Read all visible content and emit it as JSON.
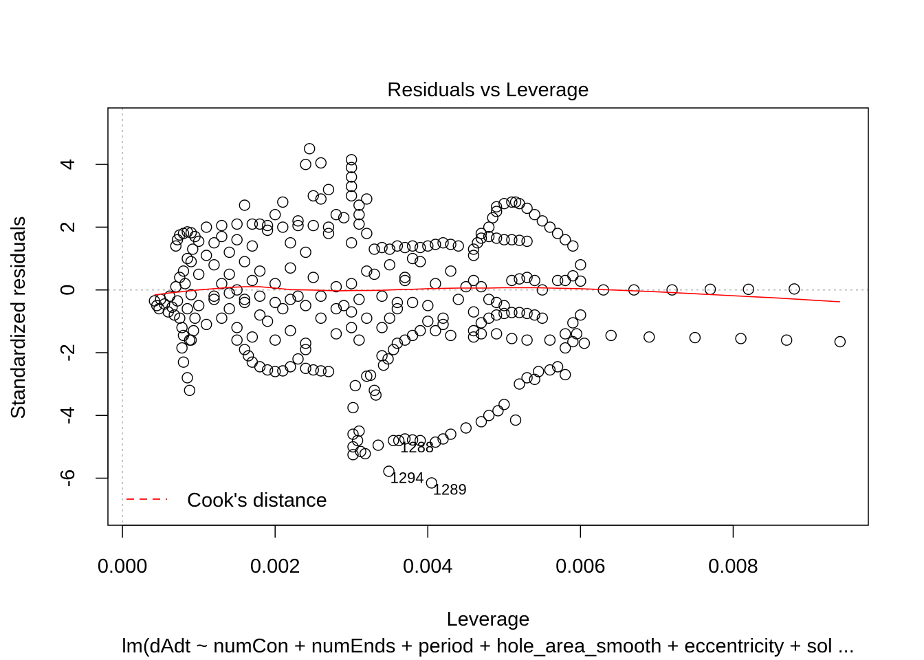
{
  "chart_data": {
    "type": "scatter",
    "title": "Residuals vs Leverage",
    "xlabel": "Leverage",
    "ylabel": "Standardized residuals",
    "subtitle": "lm(dAdt ~ numCon + numEnds + period + hole_area_smooth + eccentricity + sol ...",
    "xlim": [
      -0.00019,
      0.00977
    ],
    "ylim": [
      -7.5,
      5.8
    ],
    "x_ticks": [
      0.0,
      0.002,
      0.004,
      0.006,
      0.008
    ],
    "x_tick_labels": [
      "0.000",
      "0.002",
      "0.004",
      "0.006",
      "0.008"
    ],
    "y_ticks": [
      -6,
      -4,
      -2,
      0,
      2,
      4
    ],
    "y_tick_labels": [
      "-6",
      "-4",
      "-2",
      "0",
      "2",
      "4"
    ],
    "reference_lines": {
      "h": 0,
      "v": 0,
      "style": "dotted",
      "color": "#b3b3b3"
    },
    "legend": {
      "label": "Cook's distance",
      "position": "bottom-left",
      "line_style": "dashed",
      "color": "#ff0000"
    },
    "labeled_points": [
      {
        "label": "1288",
        "x": 0.00362,
        "y": -4.8
      },
      {
        "label": "1294",
        "x": 0.00349,
        "y": -5.78
      },
      {
        "label": "1289",
        "x": 0.00405,
        "y": -6.15
      }
    ],
    "smooth_line": {
      "color": "#ff0000",
      "x": [
        0.00042,
        0.0006,
        0.0008,
        0.001,
        0.0012,
        0.0014,
        0.0016,
        0.0018,
        0.002,
        0.0022,
        0.0024,
        0.0026,
        0.0028,
        0.003,
        0.0032,
        0.0034,
        0.0036,
        0.0038,
        0.004,
        0.0042,
        0.0044,
        0.0046,
        0.0048,
        0.005,
        0.0052,
        0.0054,
        0.0056,
        0.0058,
        0.006,
        0.0062,
        0.0066,
        0.007,
        0.0074,
        0.0078,
        0.0082,
        0.0086,
        0.009,
        0.0094
      ],
      "y": [
        -0.16,
        -0.1,
        -0.05,
        0.0,
        0.04,
        0.08,
        0.1,
        0.1,
        0.06,
        0.01,
        0.0,
        -0.01,
        -0.03,
        -0.02,
        -0.02,
        -0.01,
        0.01,
        0.02,
        0.04,
        0.05,
        0.06,
        0.06,
        0.06,
        0.07,
        0.07,
        0.07,
        0.06,
        0.05,
        0.04,
        0.02,
        -0.02,
        -0.06,
        -0.11,
        -0.16,
        -0.21,
        -0.26,
        -0.32,
        -0.38
      ]
    },
    "points": [
      [
        0.00042,
        -0.35
      ],
      [
        0.00045,
        -0.5
      ],
      [
        0.00048,
        -0.6
      ],
      [
        0.0005,
        -0.3
      ],
      [
        0.00055,
        -0.45
      ],
      [
        0.0006,
        -0.7
      ],
      [
        0.00062,
        -0.2
      ],
      [
        0.00065,
        -0.55
      ],
      [
        0.00068,
        -0.8
      ],
      [
        0.0007,
        0.1
      ],
      [
        0.00072,
        -0.35
      ],
      [
        0.00075,
        0.4
      ],
      [
        0.00075,
        -0.9
      ],
      [
        0.00078,
        -1.2
      ],
      [
        0.0008,
        0.6
      ],
      [
        0.0008,
        -1.45
      ],
      [
        0.00082,
        0.2
      ],
      [
        0.00085,
        1.0
      ],
      [
        0.00085,
        -0.6
      ],
      [
        0.00088,
        -1.6
      ],
      [
        0.0009,
        0.9
      ],
      [
        0.0009,
        -0.15
      ],
      [
        0.00092,
        1.3
      ],
      [
        0.00095,
        -0.9
      ],
      [
        0.0007,
        1.4
      ],
      [
        0.00072,
        1.6
      ],
      [
        0.00075,
        1.75
      ],
      [
        0.0008,
        1.8
      ],
      [
        0.00085,
        1.85
      ],
      [
        0.0009,
        1.82
      ],
      [
        0.00095,
        1.7
      ],
      [
        0.001,
        1.55
      ],
      [
        0.00078,
        -1.85
      ],
      [
        0.0008,
        -2.3
      ],
      [
        0.00085,
        -2.8
      ],
      [
        0.00088,
        -3.2
      ],
      [
        0.0009,
        -1.6
      ],
      [
        0.00093,
        -1.3
      ],
      [
        0.001,
        0.5
      ],
      [
        0.001,
        -0.5
      ],
      [
        0.0011,
        1.1
      ],
      [
        0.0011,
        -1.1
      ],
      [
        0.0012,
        0.8
      ],
      [
        0.0012,
        -0.3
      ],
      [
        0.0012,
        1.5
      ],
      [
        0.0013,
        0.2
      ],
      [
        0.0013,
        -0.9
      ],
      [
        0.0013,
        1.7
      ],
      [
        0.0014,
        1.2
      ],
      [
        0.0014,
        -0.6
      ],
      [
        0.0014,
        0.5
      ],
      [
        0.0015,
        1.6
      ],
      [
        0.0015,
        -1.2
      ],
      [
        0.0015,
        0.0
      ],
      [
        0.0016,
        2.7
      ],
      [
        0.0016,
        0.9
      ],
      [
        0.0016,
        -0.4
      ],
      [
        0.0017,
        1.4
      ],
      [
        0.0017,
        -1.5
      ],
      [
        0.0017,
        0.3
      ],
      [
        0.0018,
        2.1
      ],
      [
        0.0018,
        -0.8
      ],
      [
        0.0018,
        0.6
      ],
      [
        0.0019,
        1.9
      ],
      [
        0.0019,
        -1.0
      ],
      [
        0.002,
        2.4
      ],
      [
        0.002,
        0.2
      ],
      [
        0.002,
        -1.6
      ],
      [
        0.0021,
        2.8
      ],
      [
        0.0021,
        -0.6
      ],
      [
        0.0022,
        1.5
      ],
      [
        0.0022,
        -1.3
      ],
      [
        0.0022,
        0.7
      ],
      [
        0.0023,
        2.2
      ],
      [
        0.0023,
        -0.2
      ],
      [
        0.0024,
        4.0
      ],
      [
        0.0024,
        1.2
      ],
      [
        0.0024,
        -1.7
      ],
      [
        0.00245,
        4.5
      ],
      [
        0.0025,
        3.0
      ],
      [
        0.0025,
        0.4
      ],
      [
        0.0026,
        4.05
      ],
      [
        0.0026,
        2.9
      ],
      [
        0.0026,
        -0.9
      ],
      [
        0.0027,
        3.2
      ],
      [
        0.0027,
        1.8
      ],
      [
        0.0028,
        2.4
      ],
      [
        0.0028,
        0.1
      ],
      [
        0.0028,
        -1.4
      ],
      [
        0.0029,
        2.3
      ],
      [
        0.0029,
        -0.5
      ],
      [
        0.0015,
        -1.6
      ],
      [
        0.0016,
        -1.9
      ],
      [
        0.00165,
        -2.1
      ],
      [
        0.0017,
        -2.3
      ],
      [
        0.0018,
        -2.45
      ],
      [
        0.0019,
        -2.55
      ],
      [
        0.002,
        -2.6
      ],
      [
        0.0021,
        -2.58
      ],
      [
        0.0022,
        -2.45
      ],
      [
        0.0023,
        -2.2
      ],
      [
        0.0024,
        -1.9
      ],
      [
        0.0024,
        -2.5
      ],
      [
        0.0025,
        -2.55
      ],
      [
        0.0026,
        -2.58
      ],
      [
        0.0027,
        -2.6
      ],
      [
        0.0011,
        2.0
      ],
      [
        0.0013,
        2.05
      ],
      [
        0.0015,
        2.1
      ],
      [
        0.0017,
        2.1
      ],
      [
        0.0019,
        2.05
      ],
      [
        0.0021,
        2.0
      ],
      [
        0.0023,
        2.05
      ],
      [
        0.0025,
        2.05
      ],
      [
        0.0027,
        2.0
      ],
      [
        0.0012,
        -0.2
      ],
      [
        0.0014,
        -0.1
      ],
      [
        0.0016,
        -0.3
      ],
      [
        0.0018,
        -0.2
      ],
      [
        0.002,
        -0.4
      ],
      [
        0.0022,
        -0.3
      ],
      [
        0.0024,
        -0.5
      ],
      [
        0.0026,
        -0.2
      ],
      [
        0.0028,
        -0.6
      ],
      [
        0.003,
        4.15
      ],
      [
        0.003,
        3.9
      ],
      [
        0.003,
        3.6
      ],
      [
        0.003,
        3.3
      ],
      [
        0.003,
        3.0
      ],
      [
        0.0031,
        2.7
      ],
      [
        0.0031,
        2.4
      ],
      [
        0.0031,
        2.1
      ],
      [
        0.0032,
        1.8
      ],
      [
        0.003,
        1.5
      ],
      [
        0.003,
        0.2
      ],
      [
        0.003,
        -0.7
      ],
      [
        0.003,
        -1.2
      ],
      [
        0.0031,
        -1.6
      ],
      [
        0.0031,
        -0.3
      ],
      [
        0.0032,
        2.9
      ],
      [
        0.0032,
        0.6
      ],
      [
        0.0032,
        -0.9
      ],
      [
        0.00302,
        -3.75
      ],
      [
        0.00305,
        -3.05
      ],
      [
        0.00302,
        -4.6
      ],
      [
        0.00302,
        -5.0
      ],
      [
        0.00302,
        -5.25
      ],
      [
        0.00308,
        -4.8
      ],
      [
        0.0031,
        -4.5
      ],
      [
        0.00312,
        -5.15
      ],
      [
        0.00318,
        -5.22
      ],
      [
        0.0032,
        -2.75
      ],
      [
        0.00325,
        -2.72
      ],
      [
        0.0033,
        -3.2
      ],
      [
        0.00332,
        -3.35
      ],
      [
        0.00335,
        -4.95
      ],
      [
        0.0034,
        -2.1
      ],
      [
        0.00342,
        -2.4
      ],
      [
        0.00348,
        -2.2
      ],
      [
        0.00355,
        -1.9
      ],
      [
        0.0036,
        -1.7
      ],
      [
        0.0037,
        -1.6
      ],
      [
        0.0038,
        -1.45
      ],
      [
        0.0039,
        -1.3
      ],
      [
        0.00349,
        -5.78
      ],
      [
        0.00355,
        -4.8
      ],
      [
        0.00362,
        -4.8
      ],
      [
        0.0037,
        -4.75
      ],
      [
        0.0038,
        -4.78
      ],
      [
        0.0039,
        -4.8
      ],
      [
        0.00405,
        -6.15
      ],
      [
        0.0041,
        -4.85
      ],
      [
        0.0042,
        -4.75
      ],
      [
        0.0043,
        -4.6
      ],
      [
        0.0045,
        -4.4
      ],
      [
        0.0047,
        -4.2
      ],
      [
        0.0048,
        -4.0
      ],
      [
        0.00492,
        -3.85
      ],
      [
        0.005,
        -3.65
      ],
      [
        0.00515,
        -4.15
      ],
      [
        0.0052,
        -3.0
      ],
      [
        0.0053,
        -2.8
      ],
      [
        0.0054,
        -2.85
      ],
      [
        0.00545,
        -2.6
      ],
      [
        0.0056,
        -2.55
      ],
      [
        0.0057,
        -2.45
      ],
      [
        0.0058,
        -2.7
      ],
      [
        0.0033,
        1.3
      ],
      [
        0.0034,
        1.35
      ],
      [
        0.0035,
        1.3
      ],
      [
        0.0036,
        1.4
      ],
      [
        0.0037,
        1.35
      ],
      [
        0.0038,
        1.4
      ],
      [
        0.0039,
        1.35
      ],
      [
        0.004,
        1.4
      ],
      [
        0.0041,
        1.45
      ],
      [
        0.0042,
        1.5
      ],
      [
        0.0043,
        1.45
      ],
      [
        0.0044,
        1.4
      ],
      [
        0.0033,
        0.5
      ],
      [
        0.0034,
        -0.2
      ],
      [
        0.0035,
        0.8
      ],
      [
        0.0036,
        -0.6
      ],
      [
        0.0037,
        0.3
      ],
      [
        0.0038,
        -0.4
      ],
      [
        0.0039,
        0.9
      ],
      [
        0.004,
        -0.5
      ],
      [
        0.0041,
        0.2
      ],
      [
        0.0042,
        -0.9
      ],
      [
        0.0043,
        0.6
      ],
      [
        0.0044,
        -0.3
      ],
      [
        0.0045,
        0.1
      ],
      [
        0.0046,
        -0.7
      ],
      [
        0.0034,
        -1.2
      ],
      [
        0.0035,
        -0.9
      ],
      [
        0.0036,
        -0.4
      ],
      [
        0.0037,
        0.4
      ],
      [
        0.0038,
        1.0
      ],
      [
        0.004,
        -1.0
      ],
      [
        0.0041,
        -1.3
      ],
      [
        0.0042,
        -1.1
      ],
      [
        0.0043,
        -1.45
      ],
      [
        0.0046,
        1.1
      ],
      [
        0.0046,
        1.3
      ],
      [
        0.00465,
        1.5
      ],
      [
        0.0047,
        1.65
      ],
      [
        0.0048,
        1.7
      ],
      [
        0.0049,
        1.65
      ],
      [
        0.005,
        1.6
      ],
      [
        0.0051,
        1.6
      ],
      [
        0.0052,
        1.58
      ],
      [
        0.0053,
        1.55
      ],
      [
        0.0047,
        1.8
      ],
      [
        0.0048,
        2.0
      ],
      [
        0.00485,
        2.3
      ],
      [
        0.0049,
        2.5
      ],
      [
        0.0049,
        2.65
      ],
      [
        0.005,
        2.75
      ],
      [
        0.0051,
        2.8
      ],
      [
        0.00515,
        2.8
      ],
      [
        0.0052,
        2.75
      ],
      [
        0.0053,
        2.6
      ],
      [
        0.0054,
        2.4
      ],
      [
        0.0055,
        2.2
      ],
      [
        0.0056,
        2.0
      ],
      [
        0.0057,
        1.8
      ],
      [
        0.0058,
        1.6
      ],
      [
        0.0059,
        1.4
      ],
      [
        0.006,
        0.8
      ],
      [
        0.0046,
        -1.3
      ],
      [
        0.0047,
        -1.05
      ],
      [
        0.0048,
        -0.9
      ],
      [
        0.0049,
        -0.8
      ],
      [
        0.005,
        -0.75
      ],
      [
        0.0051,
        -0.72
      ],
      [
        0.0052,
        -0.72
      ],
      [
        0.0053,
        -0.75
      ],
      [
        0.0054,
        -0.8
      ],
      [
        0.0055,
        -0.9
      ],
      [
        0.0046,
        -1.5
      ],
      [
        0.0047,
        -1.4
      ],
      [
        0.0049,
        -1.4
      ],
      [
        0.0051,
        -1.55
      ],
      [
        0.0053,
        -1.6
      ],
      [
        0.0056,
        -1.6
      ],
      [
        0.0046,
        0.3
      ],
      [
        0.0047,
        0.1
      ],
      [
        0.0048,
        -0.3
      ],
      [
        0.0049,
        -0.4
      ],
      [
        0.005,
        -0.5
      ],
      [
        0.0051,
        0.3
      ],
      [
        0.0052,
        0.35
      ],
      [
        0.0053,
        0.4
      ],
      [
        0.0054,
        0.3
      ],
      [
        0.0055,
        0.0
      ],
      [
        0.0057,
        0.3
      ],
      [
        0.0058,
        0.3
      ],
      [
        0.0059,
        0.45
      ],
      [
        0.006,
        0.28
      ],
      [
        0.006,
        -0.8
      ],
      [
        0.0059,
        -1.05
      ],
      [
        0.00595,
        -1.4
      ],
      [
        0.0058,
        -1.85
      ],
      [
        0.0058,
        -1.4
      ],
      [
        0.0059,
        -1.65
      ],
      [
        0.00605,
        -1.7
      ],
      [
        0.0063,
        0.0
      ],
      [
        0.0067,
        0.0
      ],
      [
        0.0072,
        0.0
      ],
      [
        0.0077,
        0.02
      ],
      [
        0.0082,
        0.02
      ],
      [
        0.0088,
        0.03
      ],
      [
        0.0064,
        -1.45
      ],
      [
        0.0069,
        -1.5
      ],
      [
        0.0075,
        -1.52
      ],
      [
        0.0081,
        -1.55
      ],
      [
        0.0087,
        -1.6
      ],
      [
        0.0094,
        -1.65
      ]
    ]
  }
}
